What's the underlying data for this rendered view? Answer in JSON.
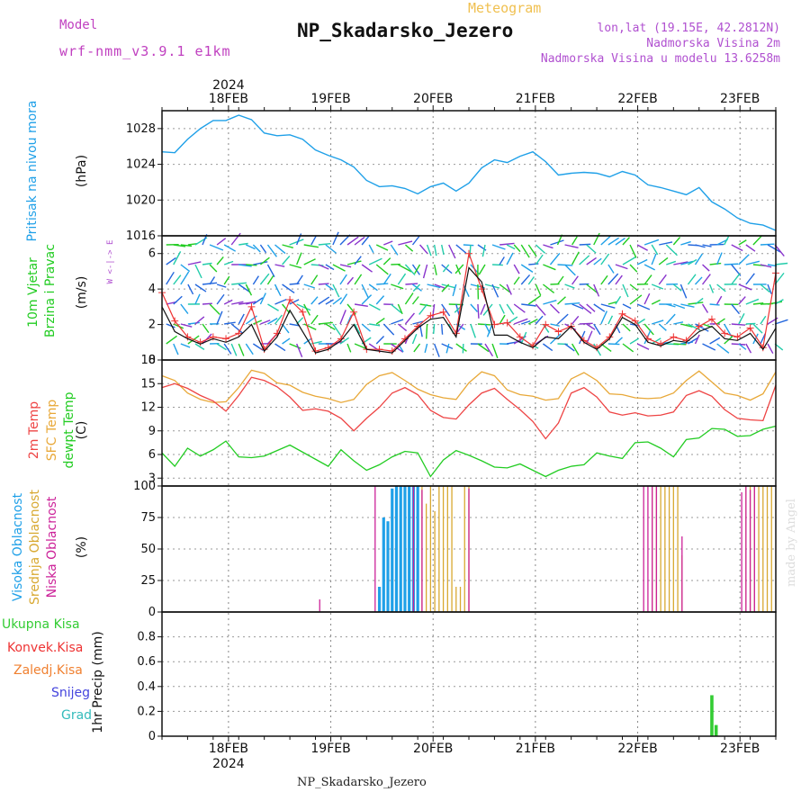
{
  "header": {
    "model_label": "Model",
    "model_version": "wrf-nmm_v3.9.1 e1km",
    "chart_kind": "Meteogram",
    "station": "NP_Skadarsko_Jezero",
    "lonlat": "lon,lat (19.15E, 42.2812N)",
    "elevation": "Nadmorska Visina 2m",
    "model_elevation": "Nadmorska Visina u modelu 13.6258m"
  },
  "footer": {
    "station": "NP_Skadarsko_Jezero"
  },
  "credit": "made by Angel",
  "time_axis": {
    "year": "2024",
    "day_labels": [
      "18FEB",
      "19FEB",
      "20FEB",
      "21FEB",
      "22FEB",
      "23FEB"
    ]
  },
  "colors": {
    "pressure": "#1fa0e8",
    "wind_speed": "#111111",
    "wind_gust": "#ee3333",
    "temp_2m": "#ee4444",
    "temp_sfc": "#e8a838",
    "dewpt": "#22cc22",
    "cloud_high": "#1fa0e8",
    "cloud_mid": "#d8a830",
    "cloud_low": "#cc2299",
    "precip_total": "#33cc33",
    "precip_conv": "#ee3333",
    "precip_frz": "#f08030",
    "precip_snow": "#4444dd",
    "precip_grad": "#33bbbb",
    "compass": "#b050d0"
  },
  "labels": {
    "pressure": [
      "Pritisak na nivou mora"
    ],
    "pressure_unit": "(hPa)",
    "wind": [
      "10m Vjetar",
      "Brzina i Pravac"
    ],
    "wind_unit": "(m/s)",
    "compass": "W <-|-> E",
    "temp": [
      "2m Temp",
      "SFC Temp",
      "dewpt Temp"
    ],
    "temp_unit": "(C)",
    "cloud": [
      "Visoka Oblacnost",
      "Srednja Oblacnost",
      "Niska Oblacnost"
    ],
    "cloud_unit": "(%)",
    "precip": [
      "Ukupna Kisa",
      "Konvek.Kisa",
      "Zaledj.Kisa",
      "Snijeg",
      "Grad"
    ],
    "precip_unit": "1hr Precip (mm)"
  },
  "chart_data": [
    {
      "type": "line",
      "panel": "pressure",
      "title": "Pritisak na nivou mora",
      "ylabel": "(hPa)",
      "ylim": [
        1016,
        1030
      ],
      "yticks": [
        1016,
        1020,
        1024,
        1028
      ],
      "x_hours": [
        0,
        3,
        6,
        9,
        12,
        15,
        18,
        21,
        24,
        27,
        30,
        33,
        36,
        39,
        42,
        45,
        48,
        51,
        54,
        57,
        60,
        63,
        66,
        69,
        72,
        75,
        78,
        81,
        84,
        87,
        90,
        93,
        96,
        99,
        102,
        105,
        108,
        111,
        114,
        117,
        120,
        123,
        126,
        129,
        132,
        135,
        138,
        141,
        144
      ],
      "series": [
        {
          "name": "Pritisak na nivou mora",
          "values": [
            1025.4,
            1025.3,
            1026.8,
            1028.0,
            1028.9,
            1028.9,
            1029.5,
            1029.0,
            1027.5,
            1027.2,
            1027.3,
            1026.8,
            1025.6,
            1025.0,
            1024.5,
            1023.7,
            1022.2,
            1021.5,
            1021.6,
            1021.3,
            1020.7,
            1021.5,
            1021.9,
            1021.0,
            1021.9,
            1023.6,
            1024.5,
            1024.2,
            1024.9,
            1025.4,
            1024.3,
            1022.8,
            1023.0,
            1023.1,
            1023.0,
            1022.6,
            1023.2,
            1022.8,
            1021.7,
            1021.4,
            1021.0,
            1020.6,
            1021.4,
            1019.8,
            1019.0,
            1018.0,
            1017.4,
            1017.2,
            1016.6
          ]
        }
      ]
    },
    {
      "type": "line",
      "panel": "wind",
      "title": "10m Vjetar Brzina i Pravac",
      "ylabel": "(m/s)",
      "ylim": [
        0,
        7
      ],
      "yticks": [
        0,
        2,
        4,
        6
      ],
      "x_hours": [
        0,
        3,
        6,
        9,
        12,
        15,
        18,
        21,
        24,
        27,
        30,
        33,
        36,
        39,
        42,
        45,
        48,
        51,
        54,
        57,
        60,
        63,
        66,
        69,
        72,
        75,
        78,
        81,
        84,
        87,
        90,
        93,
        96,
        99,
        102,
        105,
        108,
        111,
        114,
        117,
        120,
        123,
        126,
        129,
        132,
        135,
        138,
        141,
        144
      ],
      "series": [
        {
          "name": "speed",
          "values": [
            3.0,
            1.6,
            1.2,
            0.9,
            1.2,
            1.0,
            1.3,
            2.0,
            0.5,
            1.3,
            2.8,
            1.6,
            0.4,
            0.6,
            1.1,
            2.0,
            0.6,
            0.5,
            0.4,
            1.1,
            1.8,
            2.3,
            2.4,
            1.3,
            5.2,
            4.4,
            1.4,
            1.4,
            1.0,
            0.7,
            1.3,
            1.2,
            1.9,
            1.0,
            0.6,
            1.2,
            2.4,
            2.0,
            1.0,
            0.8,
            1.1,
            1.0,
            1.6,
            1.9,
            1.2,
            1.1,
            1.5,
            0.6,
            1.8
          ]
        },
        {
          "name": "gust",
          "values": [
            3.8,
            2.2,
            1.3,
            1.0,
            1.3,
            1.2,
            1.5,
            3.0,
            0.6,
            1.5,
            3.4,
            2.7,
            0.5,
            0.7,
            1.2,
            2.7,
            0.6,
            0.6,
            0.5,
            1.2,
            1.9,
            2.5,
            2.7,
            1.5,
            6.0,
            4.0,
            2.0,
            2.1,
            1.3,
            0.8,
            2.0,
            1.6,
            1.9,
            1.1,
            0.7,
            1.3,
            2.6,
            2.2,
            1.2,
            0.9,
            1.3,
            1.1,
            1.9,
            2.3,
            1.5,
            1.3,
            1.8,
            0.7,
            4.9
          ]
        }
      ]
    },
    {
      "type": "line",
      "panel": "temperature",
      "title": "2m Temp / SFC Temp / dewpt Temp",
      "ylabel": "(C)",
      "ylim": [
        2,
        18
      ],
      "yticks": [
        3,
        6,
        9,
        12,
        15,
        18
      ],
      "x_hours": [
        0,
        3,
        6,
        9,
        12,
        15,
        18,
        21,
        24,
        27,
        30,
        33,
        36,
        39,
        42,
        45,
        48,
        51,
        54,
        57,
        60,
        63,
        66,
        69,
        72,
        75,
        78,
        81,
        84,
        87,
        90,
        93,
        96,
        99,
        102,
        105,
        108,
        111,
        114,
        117,
        120,
        123,
        126,
        129,
        132,
        135,
        138,
        141,
        144
      ],
      "series": [
        {
          "name": "2m Temp",
          "values": [
            14.5,
            15.0,
            14.4,
            13.5,
            12.8,
            11.5,
            13.5,
            15.8,
            15.4,
            14.6,
            13.3,
            11.6,
            11.8,
            11.5,
            10.6,
            9.0,
            10.6,
            12.0,
            13.8,
            14.5,
            13.6,
            11.6,
            10.7,
            10.5,
            12.3,
            13.8,
            14.4,
            13.0,
            11.7,
            10.2,
            8.0,
            10.0,
            13.8,
            14.5,
            13.3,
            11.4,
            11.0,
            11.3,
            10.9,
            11.0,
            11.4,
            13.5,
            14.1,
            13.4,
            11.7,
            10.6,
            10.4,
            10.3,
            14.8
          ]
        },
        {
          "name": "SFC Temp",
          "values": [
            16.0,
            15.4,
            13.8,
            13.0,
            12.6,
            12.7,
            14.5,
            16.7,
            16.3,
            15.1,
            14.8,
            13.9,
            13.4,
            13.1,
            12.6,
            13.0,
            14.9,
            16.0,
            16.4,
            15.4,
            14.3,
            13.6,
            13.2,
            13.0,
            15.1,
            16.5,
            16.0,
            14.2,
            13.6,
            13.4,
            12.9,
            13.1,
            15.6,
            16.4,
            15.4,
            13.7,
            13.6,
            13.2,
            13.1,
            13.2,
            13.8,
            15.4,
            16.6,
            15.2,
            13.8,
            13.5,
            12.9,
            13.7,
            16.5
          ]
        },
        {
          "name": "dewpt Temp",
          "values": [
            6.2,
            4.5,
            6.8,
            5.8,
            6.6,
            7.7,
            5.7,
            5.6,
            5.8,
            6.5,
            7.2,
            6.3,
            5.4,
            4.5,
            6.6,
            5.2,
            4.0,
            4.7,
            5.7,
            6.4,
            6.2,
            3.2,
            5.3,
            6.5,
            5.9,
            5.2,
            4.4,
            4.3,
            4.8,
            4.0,
            3.2,
            4.0,
            4.5,
            4.7,
            6.2,
            5.8,
            5.5,
            7.5,
            7.6,
            6.8,
            5.7,
            7.9,
            8.1,
            9.3,
            9.2,
            8.3,
            8.4,
            9.2,
            9.6
          ]
        }
      ]
    },
    {
      "type": "bar",
      "panel": "clouds",
      "title": "Visoka / Srednja / Niska Oblacnost",
      "ylabel": "(%)",
      "ylim": [
        0,
        100
      ],
      "yticks": [
        0,
        25,
        50,
        75,
        100
      ],
      "series": [
        {
          "name": "Visoka Oblacnost",
          "x_hours": [
            51,
            52,
            53,
            54,
            55,
            56,
            57,
            58,
            59,
            60
          ],
          "values": [
            20,
            75,
            72,
            98,
            100,
            100,
            100,
            100,
            100,
            100
          ]
        },
        {
          "name": "Srednja Oblacnost",
          "x_hours": [
            61,
            62,
            63,
            64,
            65,
            66,
            67,
            68,
            69,
            70,
            71,
            72,
            115,
            116,
            117,
            118,
            119,
            120,
            121,
            122,
            137,
            138,
            139,
            140,
            141,
            142,
            143
          ],
          "values": [
            100,
            86,
            100,
            80,
            100,
            100,
            100,
            100,
            20,
            20,
            100,
            100,
            100,
            100,
            100,
            100,
            100,
            100,
            100,
            45,
            100,
            100,
            100,
            100,
            100,
            100,
            100
          ]
        },
        {
          "name": "Niska Oblacnost",
          "x_hours": [
            37,
            50,
            59,
            61,
            72,
            113,
            114,
            115,
            116,
            122,
            136,
            137,
            138,
            139
          ],
          "values": [
            10,
            100,
            100,
            97,
            98,
            100,
            100,
            100,
            100,
            60,
            95,
            100,
            97,
            100
          ]
        }
      ]
    },
    {
      "type": "bar",
      "panel": "precip",
      "title": "1hr Precip",
      "ylabel": "1hr Precip (mm)",
      "ylim": [
        0,
        1.0
      ],
      "yticks": [
        0,
        0.2,
        0.4,
        0.6,
        0.8
      ],
      "series": [
        {
          "name": "Ukupna Kisa",
          "x_hours": [
            129,
            130
          ],
          "values": [
            0.33,
            0.09
          ]
        }
      ]
    }
  ]
}
